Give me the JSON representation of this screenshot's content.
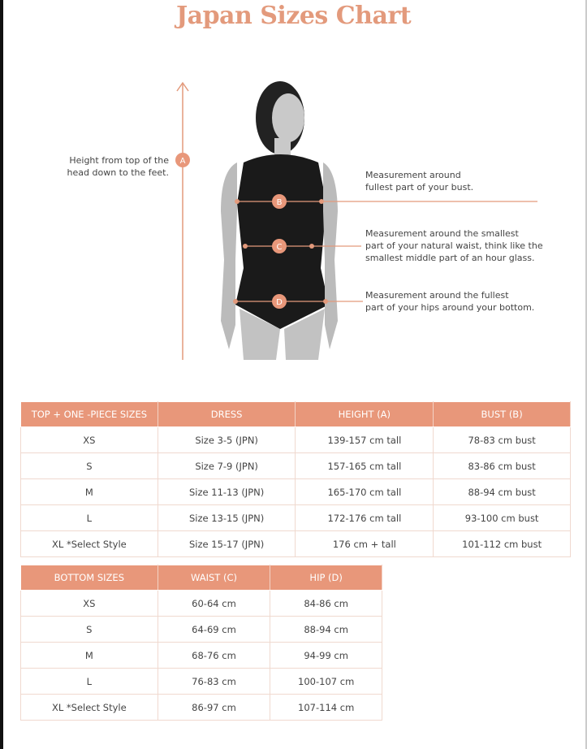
{
  "title": "Japan Sizes Chart",
  "colors": {
    "accent": "#e8977a",
    "title": "#e39a7c"
  },
  "figure": {
    "markers": [
      "A",
      "B",
      "C",
      "D"
    ],
    "height_label": [
      "Height from top of the",
      "head down to the feet."
    ],
    "bust_label": [
      "Measurement around",
      "fullest part of your bust."
    ],
    "waist_label": [
      "Measurement around the smallest",
      "part of your natural waist, think like the",
      "smallest middle part of an hour glass."
    ],
    "hip_label": [
      "Measurement around the fullest",
      "part of your hips around your bottom."
    ]
  },
  "top_table": {
    "headers": [
      "TOP + ONE -PIECE SIZES",
      "DRESS",
      "HEIGHT (A)",
      "BUST (B)"
    ],
    "rows": [
      [
        "XS",
        "Size 3-5 (JPN)",
        "139-157 cm tall",
        "78-83 cm bust"
      ],
      [
        "S",
        "Size 7-9 (JPN)",
        "157-165 cm tall",
        "83-86 cm bust"
      ],
      [
        "M",
        "Size 11-13 (JPN)",
        "165-170 cm tall",
        "88-94 cm bust"
      ],
      [
        "L",
        "Size 13-15 (JPN)",
        "172-176 cm tall",
        "93-100 cm bust"
      ],
      [
        "XL *Select Style",
        "Size 15-17 (JPN)",
        "176 cm + tall",
        "101-112 cm bust"
      ]
    ]
  },
  "bottom_table": {
    "headers": [
      "BOTTOM SIZES",
      "WAIST (C)",
      "HIP (D)"
    ],
    "rows": [
      [
        "XS",
        "60-64 cm",
        "84-86 cm"
      ],
      [
        "S",
        "64-69 cm",
        "88-94 cm"
      ],
      [
        "M",
        "68-76 cm",
        "94-99 cm"
      ],
      [
        "L",
        "76-83 cm",
        "100-107 cm"
      ],
      [
        "XL *Select Style",
        "86-97 cm",
        "107-114 cm"
      ]
    ]
  }
}
